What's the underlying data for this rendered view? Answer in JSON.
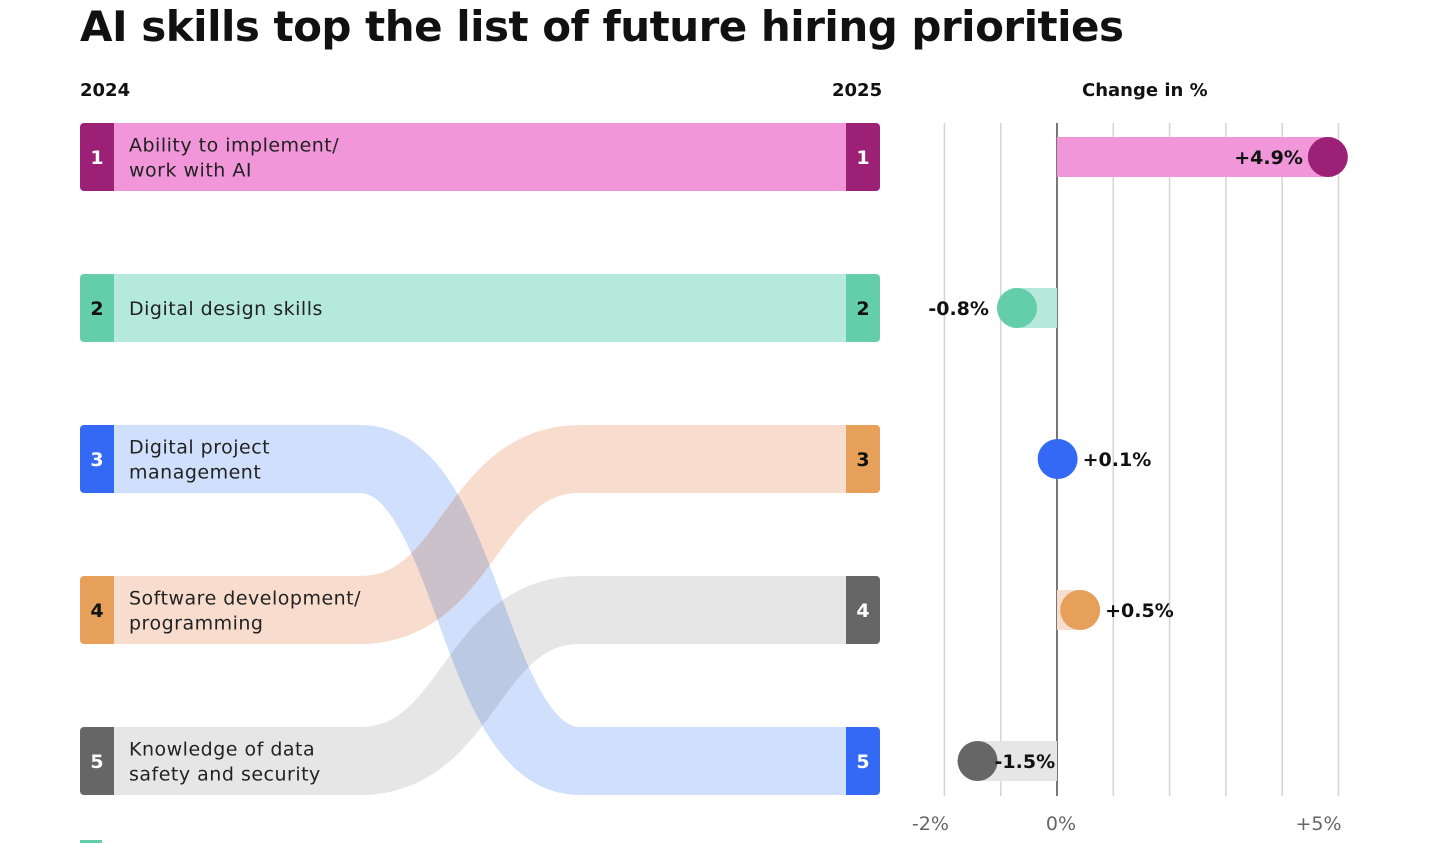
{
  "title": "AI skills top the list of future hiring priorities",
  "left_year": "2024",
  "right_year": "2025",
  "change_header": "Change in %",
  "chart_data": {
    "type": "bar",
    "categories": [
      "Ability to implement/ work with AI",
      "Digital design skills",
      "Digital project management",
      "Software development/ programming",
      "Knowledge of data safety and security"
    ],
    "label_lines": [
      [
        "Ability to implement/",
        "work with AI"
      ],
      [
        "Digital design skills"
      ],
      [
        "Digital project",
        "management"
      ],
      [
        "Software development/",
        "programming"
      ],
      [
        "Knowledge of data",
        "safety and security"
      ]
    ],
    "rank_2024": [
      1,
      2,
      3,
      4,
      5
    ],
    "rank_2025": [
      1,
      2,
      5,
      3,
      4
    ],
    "change_pct": [
      4.9,
      -0.8,
      0.1,
      0.5,
      -1.5
    ],
    "change_labels": [
      "+4.9%",
      "-0.8%",
      "+0.1%",
      "+0.5%",
      "-1.5%"
    ],
    "xlim": [
      -2,
      5
    ],
    "x_ticks": [
      -2,
      -1,
      0,
      1,
      2,
      3,
      4,
      5
    ],
    "x_tick_labels": {
      "-2": "-2%",
      "0": "0%",
      "5": "+5%"
    },
    "grid": true,
    "colors_dark": [
      "#9c2176",
      "#64cdaa",
      "#3369f5",
      "#e6a05a",
      "#666666"
    ],
    "colors_light": [
      "#f096d9",
      "#b5e9dc",
      "#d0dffb",
      "#f8ddcf",
      "#e6e6e6"
    ]
  }
}
